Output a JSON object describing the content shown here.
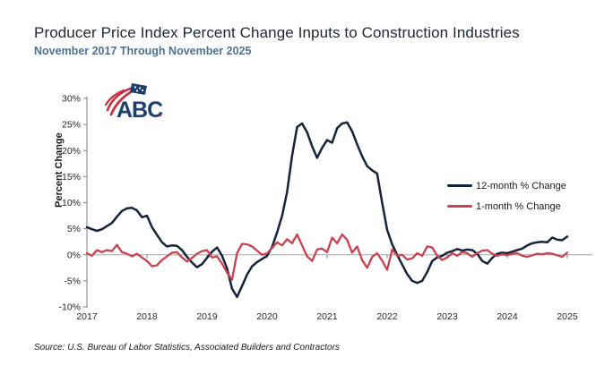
{
  "colors": {
    "accent_navy": "#15243c",
    "accent_red": "#c9424f",
    "title_text": "#1f2733",
    "subtitle_text": "#4f7191",
    "axis_line": "#7f7f7f",
    "zero_line": "#a6a6a6",
    "tick_text": "#262626",
    "logo_navy": "#1c3f6e",
    "logo_red": "#c8303f"
  },
  "logo": {
    "text": "ABC"
  },
  "chart_data": {
    "type": "line",
    "title": "Producer Price Index Percent Change Inputs to Construction Industries",
    "subtitle": "November 2017 Through November 2025",
    "source": "Source: U.S. Bureau of Labor Statistics, Associated Builders and Contractors",
    "ylabel": "Percent Change",
    "xlabel": "",
    "x_start": "Nov 2017",
    "x_end": "Nov 2025",
    "x_freq": "monthly",
    "x_tick_labels": [
      "2017",
      "2018",
      "2019",
      "2020",
      "2021",
      "2022",
      "2023",
      "2024",
      "2025"
    ],
    "x_tick_note": "each year tick marks November of that year",
    "ylim": [
      -10,
      30
    ],
    "y_ticks": [
      30,
      25,
      20,
      15,
      10,
      5,
      0,
      -5,
      -10
    ],
    "y_tick_suffix": "%",
    "grid": "zero-line-only",
    "legend_position": "middle-right",
    "series": [
      {
        "name": "12-month % Change",
        "color": "#15243c",
        "values": [
          5.3,
          4.9,
          4.6,
          4.9,
          5.5,
          6.1,
          7.3,
          8.4,
          8.9,
          9.0,
          8.5,
          7.2,
          7.5,
          5.3,
          3.8,
          2.4,
          1.6,
          1.8,
          1.7,
          0.9,
          -0.4,
          -1.5,
          -2.4,
          -1.8,
          -0.6,
          0.6,
          1.4,
          -0.2,
          -2.6,
          -6.5,
          -8.1,
          -6.0,
          -3.8,
          -2.2,
          -1.4,
          -0.8,
          -0.2,
          1.5,
          4.3,
          7.5,
          12.0,
          19.0,
          24.5,
          25.2,
          23.5,
          20.8,
          18.6,
          20.5,
          22.0,
          21.5,
          24.3,
          25.2,
          25.4,
          23.7,
          21.2,
          18.9,
          17.0,
          16.2,
          15.6,
          10.0,
          4.8,
          2.0,
          0.0,
          -1.9,
          -3.7,
          -5.0,
          -5.4,
          -5.0,
          -3.3,
          -1.2,
          -0.5,
          -0.2,
          0.4,
          0.7,
          1.1,
          0.8,
          1.0,
          0.9,
          0.2,
          -1.2,
          -1.7,
          -0.6,
          0.2,
          0.4,
          0.3,
          0.6,
          0.9,
          1.2,
          1.8,
          2.2,
          2.4,
          2.5,
          2.4,
          3.3,
          2.9,
          2.8,
          3.5
        ]
      },
      {
        "name": "1-month % Change",
        "color": "#c9424f",
        "values": [
          0.3,
          -0.2,
          0.9,
          0.5,
          0.9,
          0.7,
          1.9,
          0.5,
          0.2,
          -0.3,
          0.2,
          -0.5,
          -1.2,
          -2.2,
          -2.0,
          -1.0,
          -0.3,
          0.4,
          0.5,
          -0.5,
          -1.3,
          -0.6,
          0.2,
          0.7,
          0.9,
          -0.5,
          -0.3,
          -1.7,
          -3.4,
          -4.8,
          0.3,
          2.1,
          2.0,
          1.6,
          0.8,
          0.0,
          0.3,
          1.3,
          2.4,
          1.8,
          3.0,
          2.2,
          3.9,
          1.8,
          -0.3,
          -1.2,
          1.0,
          1.2,
          0.5,
          3.3,
          2.2,
          3.9,
          2.9,
          0.4,
          1.6,
          -1.0,
          -2.5,
          -0.4,
          0.3,
          -1.1,
          -2.9,
          1.0,
          -0.2,
          0.0,
          -0.9,
          -0.7,
          0.3,
          -0.2,
          1.6,
          1.4,
          -0.2,
          -1.0,
          -0.5,
          0.3,
          -0.2,
          0.5,
          0.3,
          -0.4,
          0.3,
          0.8,
          0.9,
          0.2,
          -0.2,
          0.1,
          -0.1,
          0.2,
          0.3,
          -0.2,
          -0.4,
          -0.1,
          0.2,
          0.1,
          0.3,
          0.2,
          -0.1,
          -0.4,
          0.4
        ]
      }
    ]
  }
}
